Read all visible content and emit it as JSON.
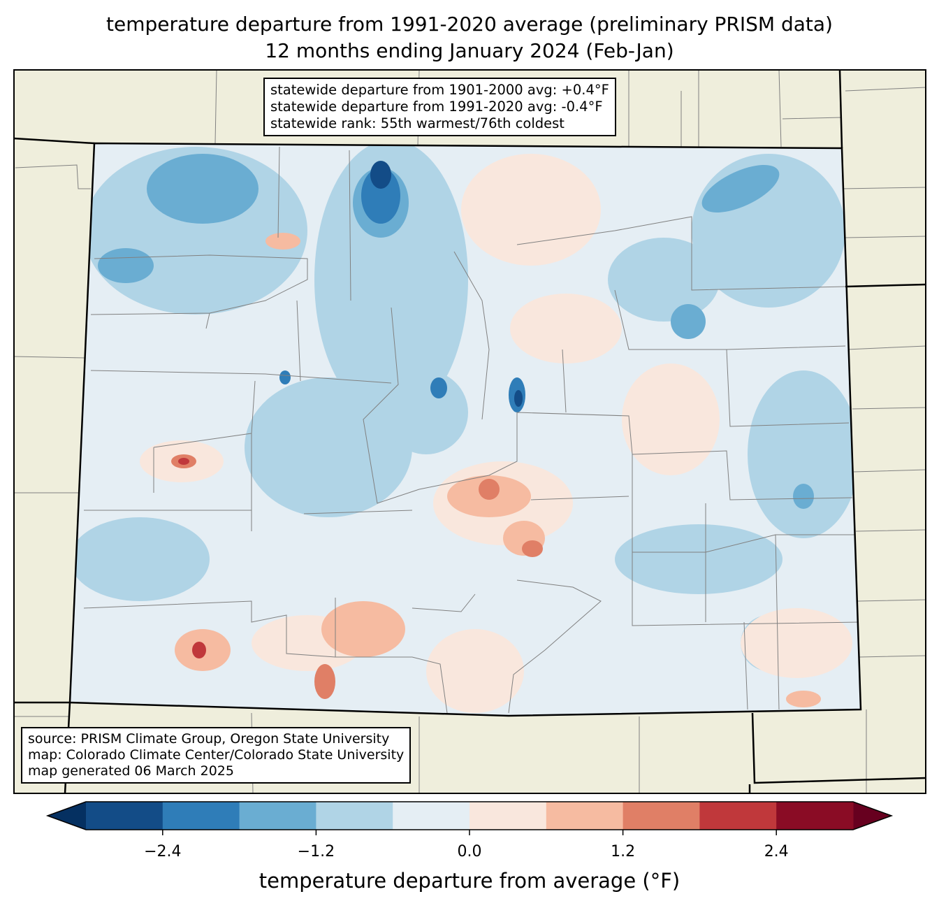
{
  "title": {
    "line1": "temperature departure from 1991-2020 average (preliminary PRISM data)",
    "line2": "12 months ending January 2024 (Feb-Jan)"
  },
  "stats_box": {
    "line1": "statewide departure from 1901-2000 avg: +0.4°F",
    "line2": "statewide departure from 1991-2020 avg: -0.4°F",
    "line3": "statewide rank: 55th warmest/76th coldest"
  },
  "source_box": {
    "line1": "source: PRISM Climate Group, Oregon State University",
    "line2": "map: Colorado Climate Center/Colorado State University",
    "line3": "map generated 06 March 2025"
  },
  "colorbar": {
    "label": "temperature departure from average (°F)",
    "boundaries": [
      -3.0,
      -2.4,
      -1.8,
      -1.2,
      -0.6,
      0.0,
      0.6,
      1.2,
      1.8,
      2.4,
      3.0
    ],
    "colors": [
      "#134c87",
      "#2f7db8",
      "#6aadd2",
      "#b0d4e6",
      "#e5eef4",
      "#f9e7dd",
      "#f6bba1",
      "#e07f66",
      "#c0383b",
      "#8a0c25"
    ],
    "under_color": "#053061",
    "over_color": "#67001f",
    "ticks": [
      "−2.4",
      "−1.2",
      "0.0",
      "1.2",
      "2.4"
    ],
    "tick_values": [
      -2.4,
      -1.2,
      0.0,
      1.2,
      2.4
    ]
  },
  "map_colors": {
    "land_outside": "#efeedc",
    "county_line": "#808080"
  }
}
